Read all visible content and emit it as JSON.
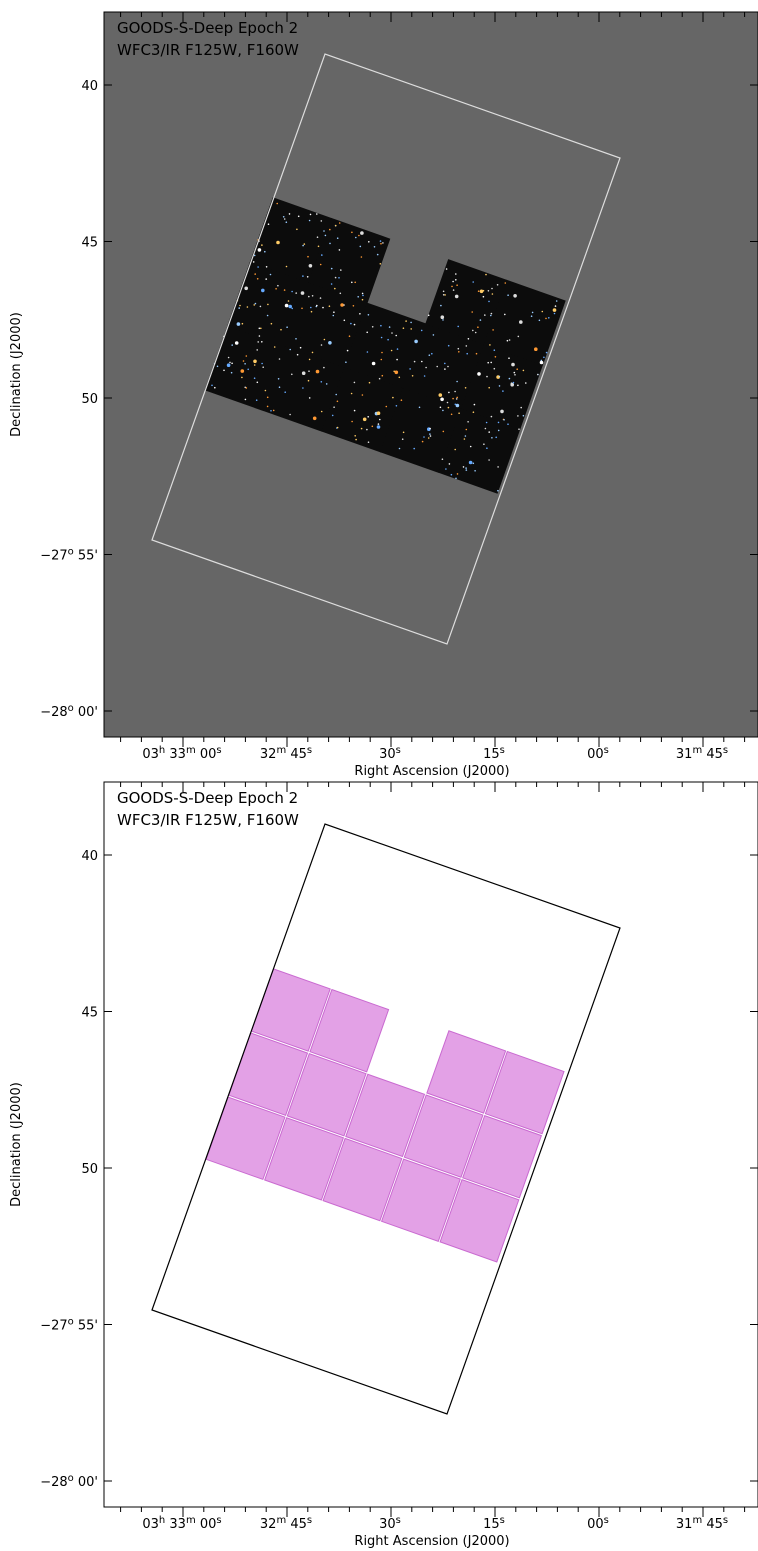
{
  "panels": [
    {
      "title": [
        "GOODS-S-Deep Epoch 2",
        "WFC3/IR F125W, F160W"
      ],
      "y_tick_labels": [
        [
          "40"
        ],
        [
          "45"
        ],
        [
          "50"
        ],
        [
          "−27",
          "o",
          " 55'"
        ],
        [
          "−28",
          "o",
          " 00'"
        ]
      ],
      "x_tick_labels": [
        [
          "03",
          "h",
          " 33",
          "m",
          " 00",
          "s"
        ],
        [
          "32",
          "m",
          " 45",
          "s"
        ],
        [
          "30",
          "s"
        ],
        [
          "15",
          "s"
        ],
        [
          "00",
          "s"
        ],
        [
          "31",
          "m",
          " 45",
          "s"
        ]
      ],
      "x_label": "Right Ascension (J2000)",
      "y_label": "Declination (J2000)"
    },
    {
      "title": [
        "GOODS-S-Deep Epoch 2",
        "WFC3/IR F125W, F160W"
      ],
      "y_tick_labels": [
        [
          "40"
        ],
        [
          "45"
        ],
        [
          "50"
        ],
        [
          "−27",
          "o",
          " 55'"
        ],
        [
          "−28",
          "o",
          " 00'"
        ]
      ],
      "x_tick_labels": [
        [
          "03",
          "h",
          " 33",
          "m",
          " 00",
          "s"
        ],
        [
          "32",
          "m",
          " 45",
          "s"
        ],
        [
          "30",
          "s"
        ],
        [
          "15",
          "s"
        ],
        [
          "00",
          "s"
        ],
        [
          "31",
          "m",
          " 45",
          "s"
        ]
      ],
      "x_label": "Right Ascension (J2000)",
      "y_label": "Declination (J2000)"
    }
  ]
}
